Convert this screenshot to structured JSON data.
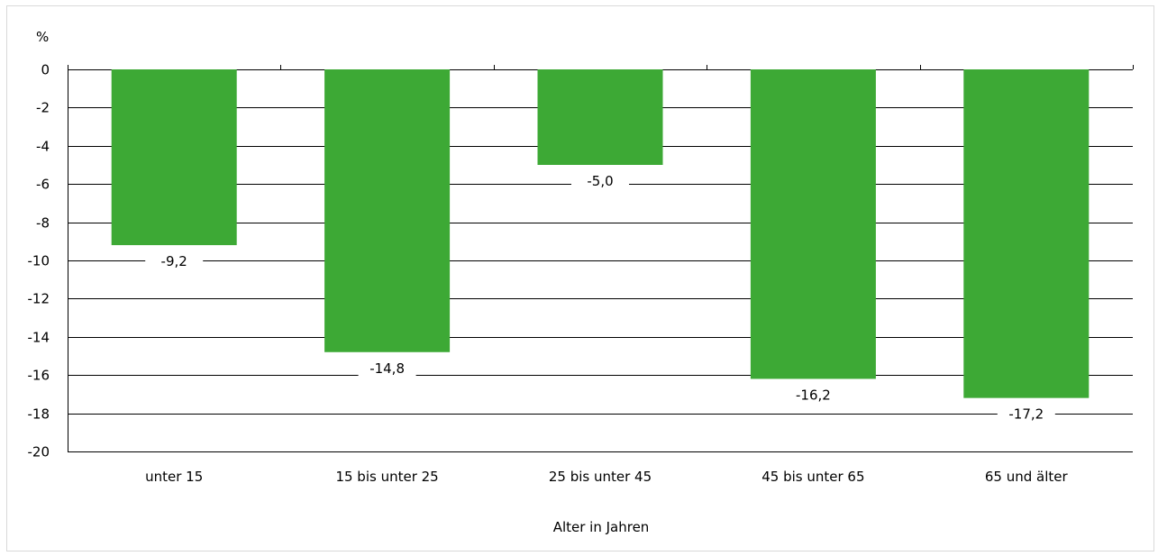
{
  "chart_data": {
    "type": "bar",
    "unit_label": "%",
    "categories": [
      "unter 15",
      "15 bis unter 25",
      "25 bis unter 45",
      "45 bis unter 65",
      "65 und älter"
    ],
    "values": [
      -9.2,
      -14.8,
      -5.0,
      -16.2,
      -17.2
    ],
    "value_labels": [
      "-9,2",
      "-14,8",
      "-5,0",
      "-16,2",
      "-17,2"
    ],
    "xlabel": "Alter in Jahren",
    "ylabel": "",
    "ylim": [
      -20,
      0
    ],
    "yticks": [
      0,
      -2,
      -4,
      -6,
      -8,
      -10,
      -12,
      -14,
      -16,
      -18,
      -20
    ],
    "ytick_labels": [
      "0",
      "-2",
      "-4",
      "-6",
      "-8",
      "-10",
      "-12",
      "-14",
      "-16",
      "-18",
      "-20"
    ],
    "grid": true,
    "legend": "none",
    "bar_color": "#3da935",
    "grid_color": "#000000"
  }
}
